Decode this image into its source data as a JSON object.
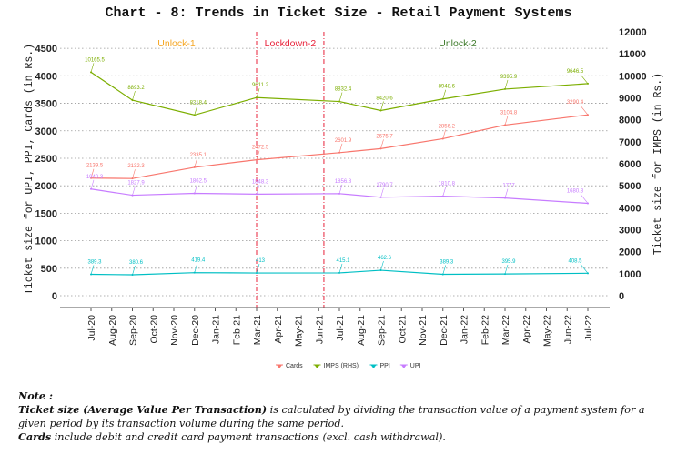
{
  "chart_data": {
    "type": "line",
    "title": "Chart - 8: Trends in Ticket Size - Retail Payment Systems",
    "xlabel": "",
    "ylabel": "Ticket size for UPI, PPI, Cards (in Rs.)",
    "y2label": "Ticket size for IMPS (in Rs.)",
    "ylim": [
      -215,
      4800
    ],
    "y2lim": [
      -537.5,
      12000
    ],
    "yticks": [
      0,
      500,
      1000,
      1500,
      2000,
      2500,
      3000,
      3500,
      4000,
      4500
    ],
    "y2ticks": [
      0,
      1000,
      2000,
      3000,
      4000,
      5000,
      6000,
      7000,
      8000,
      9000,
      10000,
      11000,
      12000
    ],
    "grid": "horizontal dotted",
    "categories": [
      "Jul-20",
      "Aug-20",
      "Sep-20",
      "Oct-20",
      "Nov-20",
      "Dec-20",
      "Jan-21",
      "Feb-21",
      "Mar-21",
      "Apr-21",
      "May-21",
      "Jun-21",
      "Jul-21",
      "Aug-21",
      "Sep-21",
      "Oct-21",
      "Nov-21",
      "Dec-21",
      "Jan-22",
      "Feb-22",
      "Mar-22",
      "Apr-22",
      "May-22",
      "Jun-22",
      "Jul-22"
    ],
    "x": [
      "Jul-20",
      "Sep-20",
      "Dec-20",
      "Mar-21",
      "Jul-21",
      "Sep-21",
      "Dec-21",
      "Mar-22",
      "Jul-22"
    ],
    "series": [
      {
        "name": "Cards",
        "axis": "left",
        "color": "#f8766d",
        "values": [
          2139.5,
          2132.3,
          2335.1,
          2472.5,
          2601.9,
          2675.7,
          2856.2,
          3104.8,
          3290.4
        ]
      },
      {
        "name": "IMPS (RHS)",
        "axis": "right",
        "color": "#7cae00",
        "values": [
          10165.5,
          8893.2,
          8218.4,
          9011.2,
          8832.4,
          8420.6,
          8948.6,
          9395.9,
          9646.5
        ]
      },
      {
        "name": "PPI",
        "axis": "left",
        "color": "#00bfc4",
        "values": [
          389.3,
          380.6,
          419.4,
          413,
          415.1,
          462.6,
          389.3,
          395.9,
          408.5
        ]
      },
      {
        "name": "UPI",
        "axis": "left",
        "color": "#c77cff",
        "values": [
          1940.3,
          1827.9,
          1862.5,
          1848.3,
          1856.8,
          1790.7,
          1810.8,
          1777,
          1680.3
        ]
      }
    ],
    "annotations": {
      "phase_lines": [
        "Mar-21",
        "Jun-21"
      ],
      "phases": [
        {
          "label": "Unlock-1",
          "color": "#f5a623"
        },
        {
          "label": "Lockdown-2",
          "color": "#e8223a"
        },
        {
          "label": "Unlock-2",
          "color": "#3d7a2a"
        }
      ]
    },
    "legend": "bottom-center"
  },
  "note": {
    "heading": "Note :",
    "line1_bold": "Ticket size (Average Value Per Transaction)",
    "line1_rest": " is calculated by dividing the transaction value of a payment system for a given period by its transaction volume during the same period.",
    "line2_bold": "Cards",
    "line2_rest": " include debit and credit card payment transactions (excl. cash withdrawal)."
  }
}
